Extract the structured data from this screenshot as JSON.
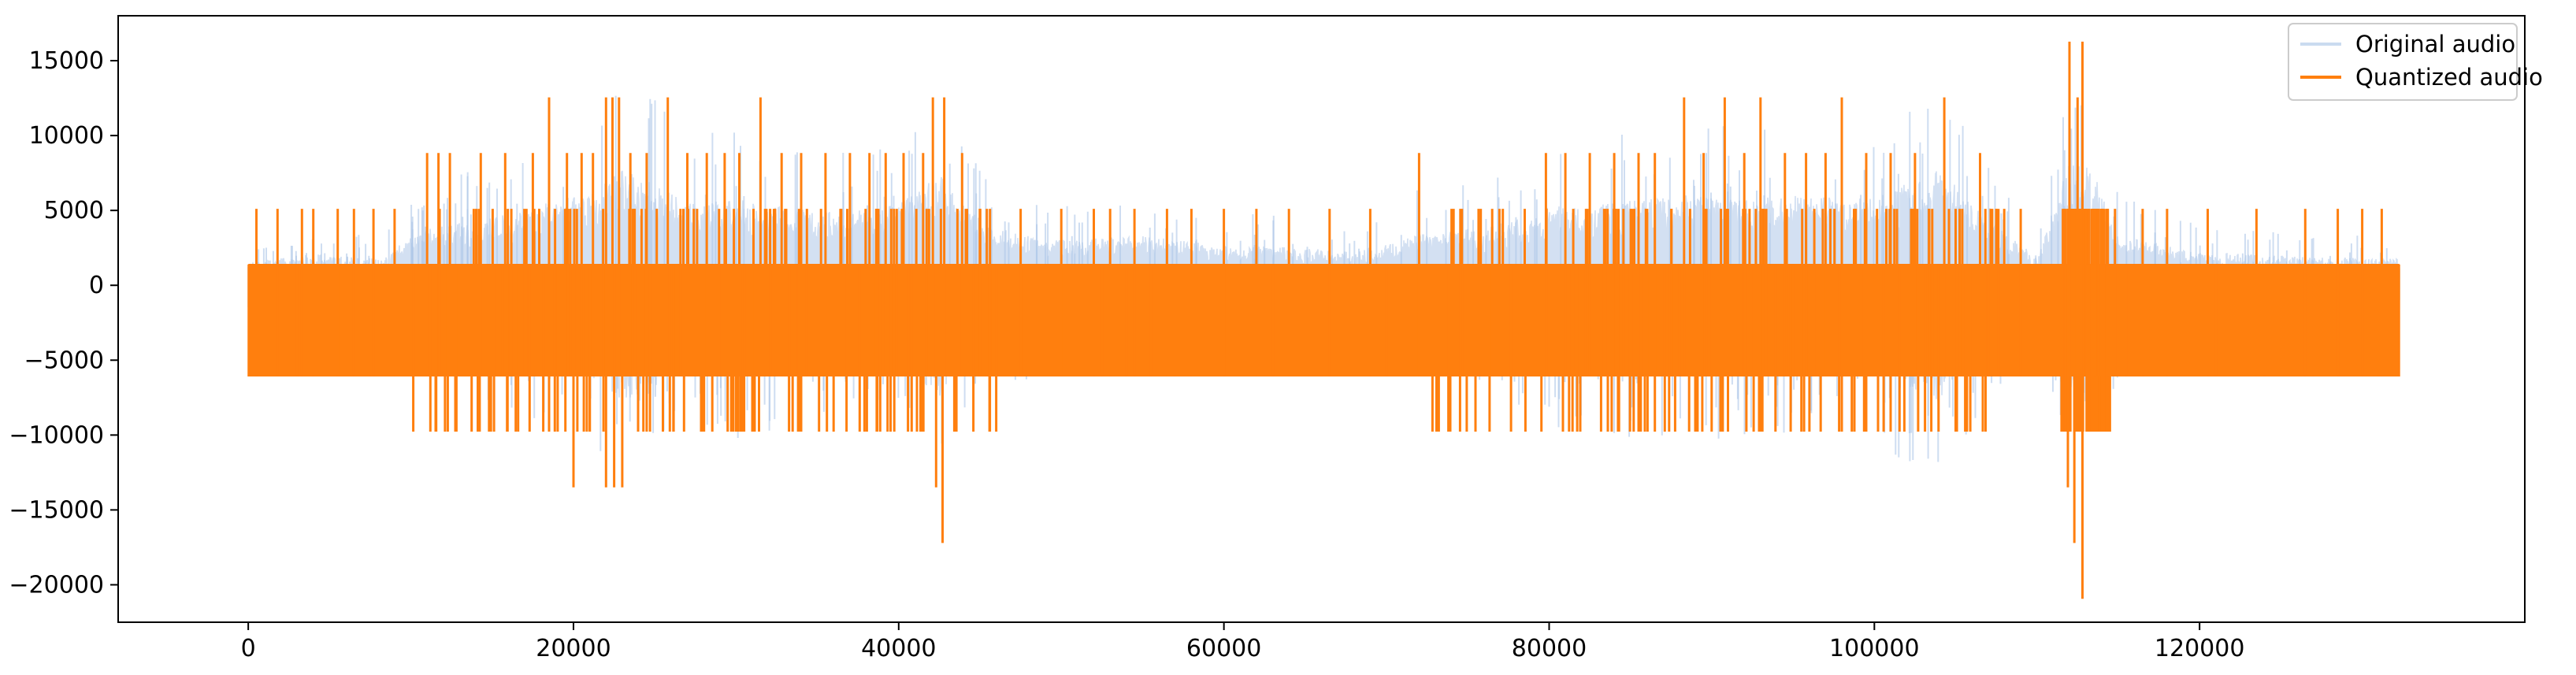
{
  "chart_data": {
    "type": "line",
    "title": "",
    "xlabel": "",
    "ylabel": "",
    "xlim": [
      -8000,
      140000
    ],
    "ylim": [
      -22500,
      18000
    ],
    "x_ticks": [
      0,
      20000,
      40000,
      60000,
      80000,
      100000,
      120000
    ],
    "x_tick_labels": [
      "0",
      "20000",
      "40000",
      "60000",
      "80000",
      "100000",
      "120000"
    ],
    "y_ticks": [
      15000,
      10000,
      5000,
      0,
      -5000,
      -10000,
      -15000,
      -20000
    ],
    "y_tick_labels": [
      "15000",
      "10000",
      "5000",
      "0",
      "−5000",
      "−10000",
      "−15000",
      "−20000"
    ],
    "grid": false,
    "legend_position": "top-right",
    "legend": [
      "Original audio",
      "Quantized audio"
    ],
    "colors": {
      "original": "#aec7e8",
      "quantized": "#ff7f0e",
      "axes": "#000000"
    },
    "x_range": [
      0,
      132300
    ],
    "quantization_levels": [
      -20930,
      -17210,
      -13490,
      -9770,
      -6050,
      -2330,
      1390,
      5110,
      8830,
      12550,
      16270
    ],
    "series": [
      {
        "name": "Original audio",
        "envelope_breakpoints": [
          [
            0,
            2800
          ],
          [
            4000,
            3800
          ],
          [
            8000,
            3200
          ],
          [
            11000,
            7000
          ],
          [
            14000,
            8000
          ],
          [
            17000,
            9000
          ],
          [
            19000,
            10500
          ],
          [
            21000,
            11000
          ],
          [
            23000,
            14000
          ],
          [
            25000,
            12500
          ],
          [
            27000,
            10000
          ],
          [
            30000,
            10500
          ],
          [
            33000,
            9500
          ],
          [
            36000,
            9000
          ],
          [
            39000,
            9500
          ],
          [
            41000,
            11000
          ],
          [
            42500,
            13500
          ],
          [
            44000,
            10000
          ],
          [
            46000,
            7000
          ],
          [
            50000,
            5500
          ],
          [
            55000,
            6000
          ],
          [
            60000,
            5000
          ],
          [
            65000,
            4500
          ],
          [
            68000,
            4000
          ],
          [
            72000,
            6500
          ],
          [
            76000,
            7000
          ],
          [
            80000,
            9500
          ],
          [
            84000,
            10000
          ],
          [
            88000,
            11000
          ],
          [
            92000,
            10500
          ],
          [
            96000,
            11000
          ],
          [
            100000,
            10500
          ],
          [
            104000,
            14200
          ],
          [
            107000,
            8000
          ],
          [
            110000,
            3500
          ],
          [
            112000,
            15000
          ],
          [
            113500,
            14000
          ],
          [
            115000,
            6000
          ],
          [
            120000,
            4000
          ],
          [
            126000,
            3500
          ],
          [
            132300,
            3200
          ]
        ]
      },
      {
        "name": "Quantized audio",
        "positive_spikes": [
          [
            500,
            5110
          ],
          [
            1800,
            5110
          ],
          [
            3300,
            5110
          ],
          [
            4000,
            5110
          ],
          [
            5500,
            5110
          ],
          [
            6500,
            5110
          ],
          [
            7700,
            5110
          ],
          [
            9000,
            5110
          ],
          [
            11000,
            8830
          ],
          [
            11700,
            8830
          ],
          [
            12400,
            8830
          ],
          [
            14300,
            8830
          ],
          [
            15800,
            8830
          ],
          [
            17500,
            8830
          ],
          [
            18500,
            12550
          ],
          [
            19600,
            8830
          ],
          [
            20500,
            8830
          ],
          [
            21200,
            8830
          ],
          [
            22000,
            12550
          ],
          [
            22400,
            12550
          ],
          [
            22800,
            12550
          ],
          [
            23500,
            8830
          ],
          [
            24500,
            8830
          ],
          [
            25800,
            12550
          ],
          [
            27000,
            8830
          ],
          [
            28200,
            8830
          ],
          [
            29300,
            8830
          ],
          [
            30200,
            8830
          ],
          [
            31500,
            12550
          ],
          [
            32800,
            8830
          ],
          [
            34000,
            8830
          ],
          [
            35500,
            8830
          ],
          [
            37000,
            8830
          ],
          [
            38200,
            8830
          ],
          [
            39200,
            8830
          ],
          [
            40300,
            8830
          ],
          [
            41500,
            8830
          ],
          [
            42100,
            12550
          ],
          [
            42800,
            12550
          ],
          [
            43900,
            8830
          ],
          [
            45000,
            5110
          ],
          [
            47500,
            5110
          ],
          [
            50000,
            5110
          ],
          [
            52000,
            5110
          ],
          [
            53000,
            5110
          ],
          [
            54500,
            5110
          ],
          [
            56500,
            5110
          ],
          [
            58000,
            5110
          ],
          [
            60000,
            5110
          ],
          [
            62000,
            5110
          ],
          [
            64000,
            5110
          ],
          [
            66500,
            5110
          ],
          [
            69000,
            5110
          ],
          [
            72000,
            8830
          ],
          [
            74000,
            5110
          ],
          [
            76500,
            5110
          ],
          [
            78500,
            5110
          ],
          [
            79800,
            8830
          ],
          [
            81000,
            8830
          ],
          [
            82500,
            8830
          ],
          [
            84000,
            8830
          ],
          [
            85500,
            8830
          ],
          [
            86500,
            8830
          ],
          [
            88300,
            12550
          ],
          [
            89500,
            8830
          ],
          [
            90800,
            12550
          ],
          [
            92000,
            8830
          ],
          [
            93000,
            12550
          ],
          [
            94500,
            8830
          ],
          [
            95800,
            8830
          ],
          [
            97000,
            8830
          ],
          [
            98000,
            12550
          ],
          [
            99500,
            8830
          ],
          [
            101000,
            8830
          ],
          [
            102500,
            8830
          ],
          [
            104300,
            12550
          ],
          [
            106500,
            8830
          ],
          [
            107500,
            5110
          ],
          [
            109000,
            5110
          ],
          [
            112000,
            16270
          ],
          [
            112500,
            12550
          ],
          [
            112800,
            16270
          ],
          [
            113700,
            5110
          ],
          [
            114800,
            5110
          ],
          [
            116500,
            5110
          ],
          [
            118000,
            5110
          ],
          [
            120500,
            5110
          ],
          [
            123500,
            5110
          ],
          [
            126500,
            5110
          ],
          [
            128500,
            5110
          ],
          [
            130000,
            5110
          ],
          [
            131200,
            5110
          ]
        ],
        "negative_spikes": [
          [
            3000,
            -6050
          ],
          [
            5500,
            -6050
          ],
          [
            7500,
            -6050
          ],
          [
            10000,
            -6050
          ],
          [
            11200,
            -9770
          ],
          [
            12100,
            -9770
          ],
          [
            12800,
            -9770
          ],
          [
            13800,
            -6050
          ],
          [
            15500,
            -6050
          ],
          [
            17200,
            -6050
          ],
          [
            18500,
            -9770
          ],
          [
            19500,
            -9770
          ],
          [
            20000,
            -13490
          ],
          [
            21000,
            -9770
          ],
          [
            22000,
            -13490
          ],
          [
            22500,
            -13490
          ],
          [
            23000,
            -13490
          ],
          [
            24300,
            -9770
          ],
          [
            25500,
            -9770
          ],
          [
            26800,
            -9770
          ],
          [
            28000,
            -6050
          ],
          [
            29700,
            -9770
          ],
          [
            31000,
            -9770
          ],
          [
            32500,
            -6050
          ],
          [
            34000,
            -9770
          ],
          [
            36000,
            -9770
          ],
          [
            37800,
            -6050
          ],
          [
            39500,
            -9770
          ],
          [
            40800,
            -9770
          ],
          [
            41500,
            -9770
          ],
          [
            42300,
            -13490
          ],
          [
            42700,
            -17210
          ],
          [
            43500,
            -9770
          ],
          [
            45000,
            -6050
          ],
          [
            47500,
            -6050
          ],
          [
            50000,
            -6050
          ],
          [
            52500,
            -6050
          ],
          [
            54000,
            -6050
          ],
          [
            55500,
            -6050
          ],
          [
            57000,
            -6050
          ],
          [
            60000,
            -6050
          ],
          [
            63000,
            -6050
          ],
          [
            66000,
            -6050
          ],
          [
            70000,
            -6050
          ],
          [
            72000,
            -6050
          ],
          [
            74000,
            -6050
          ],
          [
            76000,
            -6050
          ],
          [
            78000,
            -6050
          ],
          [
            80000,
            -6050
          ],
          [
            82000,
            -6050
          ],
          [
            84300,
            -9770
          ],
          [
            85500,
            -9770
          ],
          [
            86500,
            -9770
          ],
          [
            88000,
            -6050
          ],
          [
            89500,
            -6050
          ],
          [
            91000,
            -9770
          ],
          [
            93000,
            -9770
          ],
          [
            95000,
            -6050
          ],
          [
            96700,
            -9770
          ],
          [
            98000,
            -9770
          ],
          [
            99500,
            -9770
          ],
          [
            101000,
            -9770
          ],
          [
            103500,
            -9770
          ],
          [
            105000,
            -9770
          ],
          [
            107000,
            -6050
          ],
          [
            109500,
            -6050
          ],
          [
            111900,
            -13490
          ],
          [
            112300,
            -17210
          ],
          [
            112600,
            -9770
          ],
          [
            112800,
            -20930
          ],
          [
            113500,
            -6050
          ],
          [
            115500,
            -6050
          ],
          [
            118000,
            -6050
          ],
          [
            121000,
            -6050
          ],
          [
            124000,
            -6050
          ],
          [
            127000,
            -6050
          ],
          [
            131000,
            -6050
          ]
        ]
      }
    ]
  }
}
